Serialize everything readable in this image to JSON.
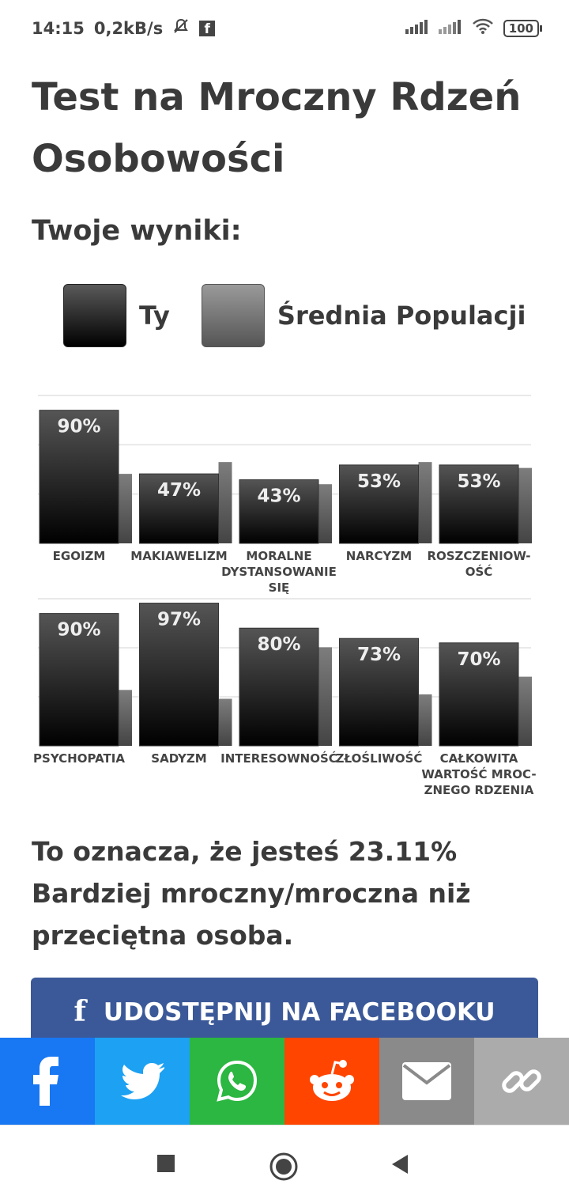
{
  "status_bar": {
    "time": "14:15",
    "net_speed": "0,2kB/s",
    "battery": "100"
  },
  "page": {
    "title": "Test na Mroczny Rdzeń Osobowości",
    "results_heading": "Twoje wyniki:",
    "legend": {
      "you": "Ty",
      "average": "Średnia Populacji"
    },
    "result_text": "To oznacza, że jesteś 23.11% Bardziej mroczny/mroczna niż przeciętna osoba.",
    "facebook_button": "UDOSTĘPNIJ NA FACEBOOKU"
  },
  "share_bar": [
    {
      "name": "facebook",
      "icon": "facebook-icon",
      "color": "#1877f2"
    },
    {
      "name": "twitter",
      "icon": "twitter-icon",
      "color": "#1da1f2"
    },
    {
      "name": "whatsapp",
      "icon": "whatsapp-icon",
      "color": "#2bb741"
    },
    {
      "name": "reddit",
      "icon": "reddit-icon",
      "color": "#ff4500"
    },
    {
      "name": "email",
      "icon": "email-icon",
      "color": "#8a8a8a"
    },
    {
      "name": "link",
      "icon": "link-icon",
      "color": "#ababab"
    }
  ],
  "chart_data": {
    "type": "bar",
    "series": [
      {
        "name": "Ty",
        "color": "#000000"
      },
      {
        "name": "Średnia Populacji",
        "color": "#555555"
      }
    ],
    "rows": [
      {
        "categories": [
          [
            "EGOIZM"
          ],
          [
            "MAKIAWELIZM"
          ],
          [
            "MORALNE",
            "DYSTANSOWANIE",
            "SIĘ"
          ],
          [
            "NARCYZM"
          ],
          [
            "ROSZCZENIOW-",
            "OŚĆ"
          ]
        ],
        "you": [
          90,
          47,
          43,
          53,
          53
        ],
        "average": [
          47,
          55,
          40,
          55,
          51
        ],
        "labels": [
          "90%",
          "47%",
          "43%",
          "53%",
          "53%"
        ]
      },
      {
        "categories": [
          [
            "PSYCHOPATIA"
          ],
          [
            "SADYZM"
          ],
          [
            "INTERESOWNOŚĆ"
          ],
          [
            "ZŁOŚLIWOŚĆ"
          ],
          [
            "CAŁKOWITA",
            "WARTOŚĆ MROC-",
            "ZNEGO RDZENIA"
          ]
        ],
        "you": [
          90,
          97,
          80,
          73,
          70
        ],
        "average": [
          38,
          32,
          67,
          35,
          47
        ],
        "labels": [
          "90%",
          "97%",
          "80%",
          "73%",
          "70%"
        ]
      }
    ],
    "ylim": [
      0,
      100
    ],
    "grid": true
  }
}
